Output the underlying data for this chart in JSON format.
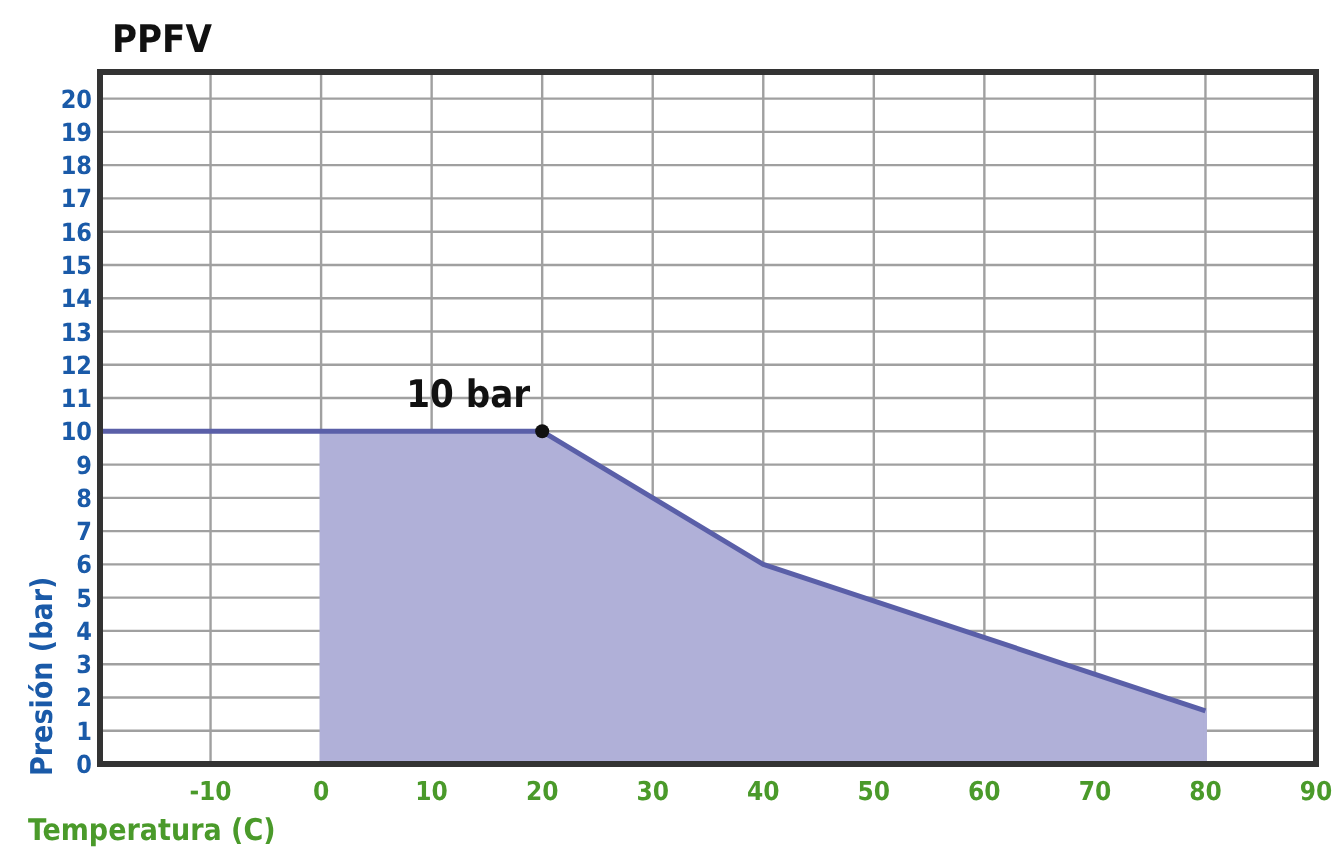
{
  "chart_data": {
    "type": "area",
    "title": "PPFV",
    "xlabel": "Temperatura (C)",
    "ylabel": "Presión (bar)",
    "xlim": [
      -20,
      90
    ],
    "xticks": [
      {
        "value": -20,
        "label": null
      },
      -10,
      0,
      10,
      20,
      30,
      40,
      50,
      60,
      70,
      80,
      90
    ],
    "ylim": [
      0,
      20.8
    ],
    "yticks": [
      0,
      1,
      2,
      3,
      4,
      5,
      6,
      7,
      8,
      9,
      10,
      11,
      12,
      13,
      14,
      15,
      16,
      17,
      18,
      19,
      20
    ],
    "grid": true,
    "series": [
      {
        "color": "#b0b0d8",
        "x": [
          0,
          20,
          40,
          80
        ],
        "values": [
          10,
          10,
          6,
          1.6
        ]
      },
      {
        "type": "line",
        "color": "#5a5fa8",
        "x": [
          -20,
          0,
          20,
          40,
          80
        ],
        "values": [
          10,
          10,
          10,
          6,
          1.6
        ],
        "marker": "none"
      },
      {
        "type": "scatter",
        "color": "#111111",
        "x": [
          20
        ],
        "values": [
          10
        ],
        "marker": "circle"
      }
    ],
    "annotations": [
      {
        "text": "10 bar",
        "x": 20,
        "y": 10
      }
    ]
  }
}
